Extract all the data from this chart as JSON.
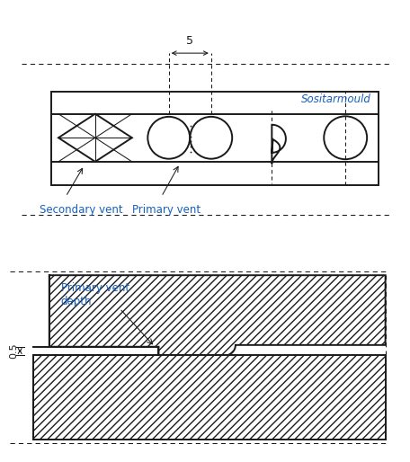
{
  "bg_color": "#ffffff",
  "line_color": "#1a1a1a",
  "blue_color": "#1560BD",
  "fig_width": 4.35,
  "fig_height": 4.94,
  "label_secondary_vent": "Secondary vent",
  "label_primary_vent": "Primary vent",
  "label_primary_vent_depth": "Primary vent\ndepth",
  "label_dim_5": "5",
  "label_dim_05": "0.5",
  "label_sositamould": "Sositarmould"
}
